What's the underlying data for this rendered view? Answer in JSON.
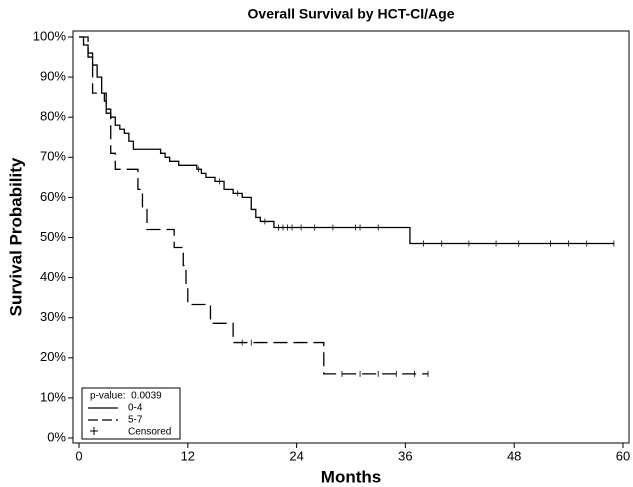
{
  "chart_data": {
    "type": "km",
    "title": "Overall Survival by HCT-CI/Age",
    "x_label": "Months",
    "y_label": "Survival Probability",
    "xlim": [
      0,
      60
    ],
    "xticks": [
      0,
      12,
      24,
      36,
      48,
      60
    ],
    "ylim": [
      0,
      100
    ],
    "yticks": [
      {
        "value": 0,
        "label": "0%"
      },
      {
        "value": 10,
        "label": "10%"
      },
      {
        "value": 20,
        "label": "20%"
      },
      {
        "value": 30,
        "label": "30%"
      },
      {
        "value": 40,
        "label": "40%"
      },
      {
        "value": 50,
        "label": "50%"
      },
      {
        "value": 60,
        "label": "60%"
      },
      {
        "value": 70,
        "label": "70%"
      },
      {
        "value": 80,
        "label": "80%"
      },
      {
        "value": 90,
        "label": "90%"
      },
      {
        "value": 100,
        "label": "100%"
      }
    ],
    "legend_title": "p-value:  0.0039",
    "censored_label": "Censored",
    "legend_position": "lower-left",
    "series": [
      {
        "name": "0-4",
        "color": "#000000",
        "dash": "solid",
        "x": [
          0,
          0.5,
          1,
          1.5,
          2,
          2.5,
          2.8,
          3,
          3.5,
          4,
          4.5,
          5,
          5.5,
          6,
          9,
          9.5,
          10,
          11,
          13,
          13.5,
          14,
          15,
          16,
          17,
          18,
          19,
          19.5,
          20,
          21.5,
          36.5,
          59
        ],
        "values": [
          100,
          98,
          96,
          93,
          90,
          86,
          84,
          82,
          80,
          78,
          77,
          76,
          74,
          72,
          71,
          70,
          69,
          68,
          67,
          66,
          65,
          64,
          62,
          61,
          60,
          57,
          55,
          54,
          52.5,
          48.5,
          48.5
        ],
        "censored_x": [
          13.2,
          15.5,
          17.5,
          20.5,
          22,
          22.5,
          23,
          23.5,
          24.5,
          26,
          28,
          30.5,
          31,
          33,
          38,
          40,
          43,
          46,
          48.5,
          52,
          54,
          56,
          59
        ],
        "censored_y": [
          67,
          64,
          61,
          54,
          52.5,
          52.5,
          52.5,
          52.5,
          52.5,
          52.5,
          52.5,
          52.5,
          52.5,
          52.5,
          48.5,
          48.5,
          48.5,
          48.5,
          48.5,
          48.5,
          48.5,
          48.5,
          48.5
        ]
      },
      {
        "name": "5-7",
        "color": "#000000",
        "dash": "dashed",
        "x": [
          0,
          1,
          1.5,
          3,
          3.5,
          4,
          6.5,
          7,
          7.5,
          10.5,
          11.5,
          11.8,
          12,
          14.5,
          17,
          27,
          38.5
        ],
        "values": [
          100,
          95,
          86,
          81,
          71,
          67,
          62,
          57,
          52,
          47.5,
          43,
          38,
          33.3,
          28.6,
          23.8,
          16,
          16
        ],
        "censored_x": [
          18,
          19,
          29,
          31,
          33,
          35,
          37,
          38.5
        ],
        "censored_y": [
          23.8,
          23.8,
          16,
          16,
          16,
          16,
          16,
          16
        ]
      }
    ]
  }
}
